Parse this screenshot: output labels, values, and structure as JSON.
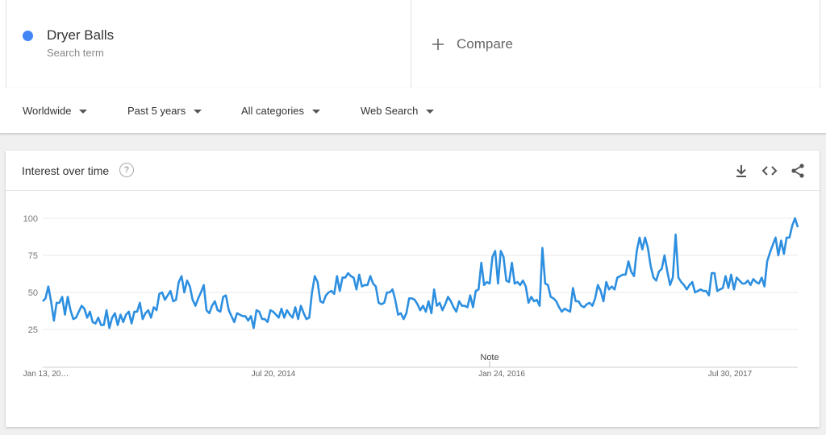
{
  "search_term": {
    "name": "Dryer Balls",
    "subtitle": "Search term",
    "color": "#4285f4"
  },
  "compare": {
    "label": "Compare",
    "icon": "plus-icon"
  },
  "filters": [
    {
      "label": "Worldwide"
    },
    {
      "label": "Past 5 years"
    },
    {
      "label": "All categories"
    },
    {
      "label": "Web Search"
    }
  ],
  "card": {
    "title": "Interest over time",
    "icons": [
      "help-icon",
      "download-icon",
      "embed-icon",
      "share-icon"
    ]
  },
  "chart_data": {
    "type": "line",
    "title": "Interest over time",
    "xlabel": "",
    "ylabel": "",
    "ylim": [
      0,
      100
    ],
    "yticks": [
      25,
      50,
      75,
      100
    ],
    "xtick_labels": [
      "Jan 13, 20…",
      "Jul 20, 2014",
      "Jan 24, 2016",
      "Jul 30, 2017"
    ],
    "annotation": "Note",
    "grid": true,
    "legend": "none",
    "color": "#2d8fe0",
    "series": [
      {
        "values": [
          44,
          46,
          54,
          44,
          31,
          43,
          43,
          47,
          35,
          47,
          38,
          32,
          33,
          37,
          41,
          39,
          33,
          37,
          30,
          29,
          33,
          28,
          28,
          38,
          26,
          33,
          36,
          28,
          35,
          30,
          35,
          37,
          29,
          37,
          37,
          43,
          32,
          36,
          38,
          33,
          40,
          38,
          49,
          50,
          45,
          48,
          51,
          44,
          45,
          57,
          61,
          50,
          58,
          54,
          45,
          41,
          46,
          50,
          55,
          38,
          36,
          41,
          44,
          38,
          37,
          47,
          48,
          38,
          34,
          30,
          36,
          35,
          34,
          34,
          31,
          34,
          26,
          38,
          37,
          32,
          32,
          30,
          38,
          37,
          35,
          33,
          39,
          33,
          38,
          35,
          33,
          40,
          32,
          41,
          36,
          32,
          33,
          50,
          61,
          57,
          44,
          43,
          48,
          50,
          51,
          49,
          61,
          51,
          60,
          60,
          63,
          61,
          60,
          52,
          62,
          54,
          55,
          55,
          61,
          56,
          54,
          43,
          42,
          43,
          50,
          50,
          52,
          45,
          35,
          36,
          32,
          36,
          46,
          46,
          45,
          42,
          38,
          41,
          37,
          44,
          36,
          52,
          41,
          43,
          38,
          42,
          47,
          44,
          40,
          37,
          44,
          41,
          41,
          40,
          48,
          40,
          51,
          52,
          70,
          55,
          57,
          56,
          74,
          78,
          56,
          78,
          74,
          58,
          57,
          70,
          56,
          57,
          55,
          58,
          54,
          43,
          47,
          44,
          45,
          41,
          80,
          56,
          55,
          47,
          46,
          44,
          40,
          37,
          39,
          38,
          37,
          53,
          44,
          44,
          41,
          40,
          42,
          43,
          41,
          46,
          55,
          51,
          44,
          57,
          52,
          54,
          52,
          60,
          61,
          62,
          62,
          71,
          64,
          61,
          78,
          87,
          79,
          87,
          80,
          68,
          60,
          58,
          64,
          66,
          75,
          64,
          55,
          60,
          89,
          60,
          57,
          55,
          52,
          55,
          57,
          50,
          51,
          52,
          51,
          51,
          48,
          63,
          63,
          51,
          52,
          53,
          61,
          53,
          62,
          52,
          60,
          58,
          56,
          56,
          58,
          55,
          59,
          57,
          56,
          60,
          54,
          71,
          77,
          82,
          87,
          75,
          85,
          76,
          87,
          87,
          95,
          100,
          94
        ]
      }
    ]
  }
}
